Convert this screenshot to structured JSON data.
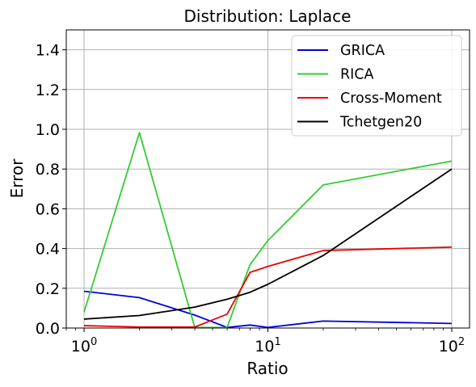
{
  "chart_data": {
    "type": "line",
    "title": "Distribution: Laplace",
    "xlabel": "Ratio",
    "ylabel": "Error",
    "xscale": "log",
    "xlim": [
      0.8,
      125
    ],
    "ylim": [
      0,
      1.5
    ],
    "grid": true,
    "legend_position": "upper-right",
    "x": [
      1,
      2,
      4,
      6,
      8,
      10,
      20,
      100
    ],
    "x_ticks": [
      1,
      10,
      100
    ],
    "x_tick_labels": [
      {
        "base": "10",
        "exp": "0"
      },
      {
        "base": "10",
        "exp": "1"
      },
      {
        "base": "10",
        "exp": "2"
      }
    ],
    "y_ticks": [
      0,
      0.2,
      0.4,
      0.6,
      0.8,
      1.0,
      1.2,
      1.4
    ],
    "y_tick_labels": [
      "0.0",
      "0.2",
      "0.4",
      "0.6",
      "0.8",
      "1.0",
      "1.2",
      "1.4"
    ],
    "series": [
      {
        "name": "GRICA",
        "color": "#0000dd",
        "values": [
          0.185,
          0.153,
          0.065,
          0.003,
          0.015,
          0.003,
          0.035,
          0.023
        ]
      },
      {
        "name": "RICA",
        "color": "#33cc33",
        "values": [
          0.08,
          0.983,
          0.003,
          0.003,
          0.32,
          0.44,
          0.72,
          0.84
        ]
      },
      {
        "name": "Cross-Moment",
        "color": "#ee0000",
        "values": [
          0.012,
          0.005,
          0.005,
          0.07,
          0.28,
          0.31,
          0.39,
          0.407
        ]
      },
      {
        "name": "Tchetgen20",
        "color": "#000000",
        "values": [
          0.045,
          0.063,
          0.105,
          0.145,
          0.18,
          0.22,
          0.365,
          0.8
        ]
      }
    ]
  }
}
